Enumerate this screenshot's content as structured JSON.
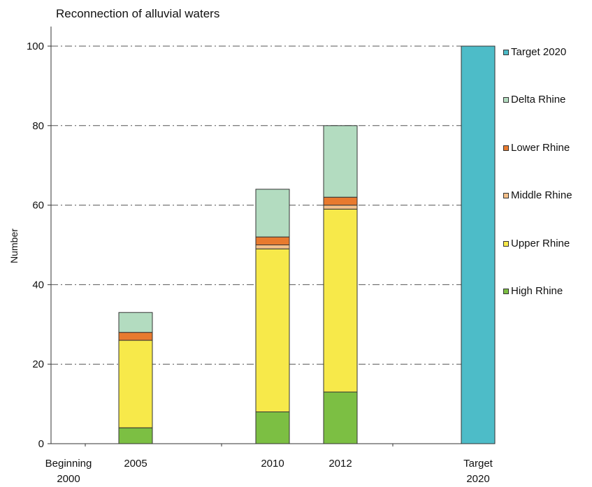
{
  "chart_data": {
    "type": "bar",
    "stacked": true,
    "title": "Reconnection of alluvial waters",
    "xlabel": "",
    "ylabel": "Number",
    "ylim": [
      0,
      105
    ],
    "yticks": [
      0,
      20,
      40,
      60,
      80,
      100
    ],
    "grid": true,
    "legend_position": "right",
    "categories": [
      "Beginning 2000",
      "2005",
      "2010",
      "2012",
      "Target 2020"
    ],
    "series": [
      {
        "name": "High Rhine",
        "color": "#7cbf43",
        "values": [
          0,
          4,
          8,
          13,
          0
        ]
      },
      {
        "name": "Upper Rhine",
        "color": "#f7e94a",
        "values": [
          0,
          22,
          41,
          46,
          0
        ]
      },
      {
        "name": "Middle Rhine",
        "color": "#f4c08a",
        "values": [
          0,
          0,
          1,
          1,
          0
        ]
      },
      {
        "name": "Lower Rhine",
        "color": "#e87a2e",
        "values": [
          0,
          2,
          2,
          2,
          0
        ]
      },
      {
        "name": "Delta Rhine",
        "color": "#b3dcc0",
        "values": [
          0,
          5,
          12,
          18,
          0
        ]
      },
      {
        "name": "Target 2020",
        "color": "#4dbcc8",
        "values": [
          0,
          0,
          0,
          0,
          100
        ]
      }
    ]
  },
  "legend_order": [
    "Target 2020",
    "Delta Rhine",
    "Lower Rhine",
    "Middle Rhine",
    "Upper Rhine",
    "High Rhine"
  ],
  "x_tick_labels": [
    {
      "line1": "Beginning",
      "line2": "2000"
    },
    {
      "line1": "2005",
      "line2": ""
    },
    {
      "line1": "2010",
      "line2": ""
    },
    {
      "line1": "2012",
      "line2": ""
    },
    {
      "line1": "Target",
      "line2": "2020"
    }
  ]
}
